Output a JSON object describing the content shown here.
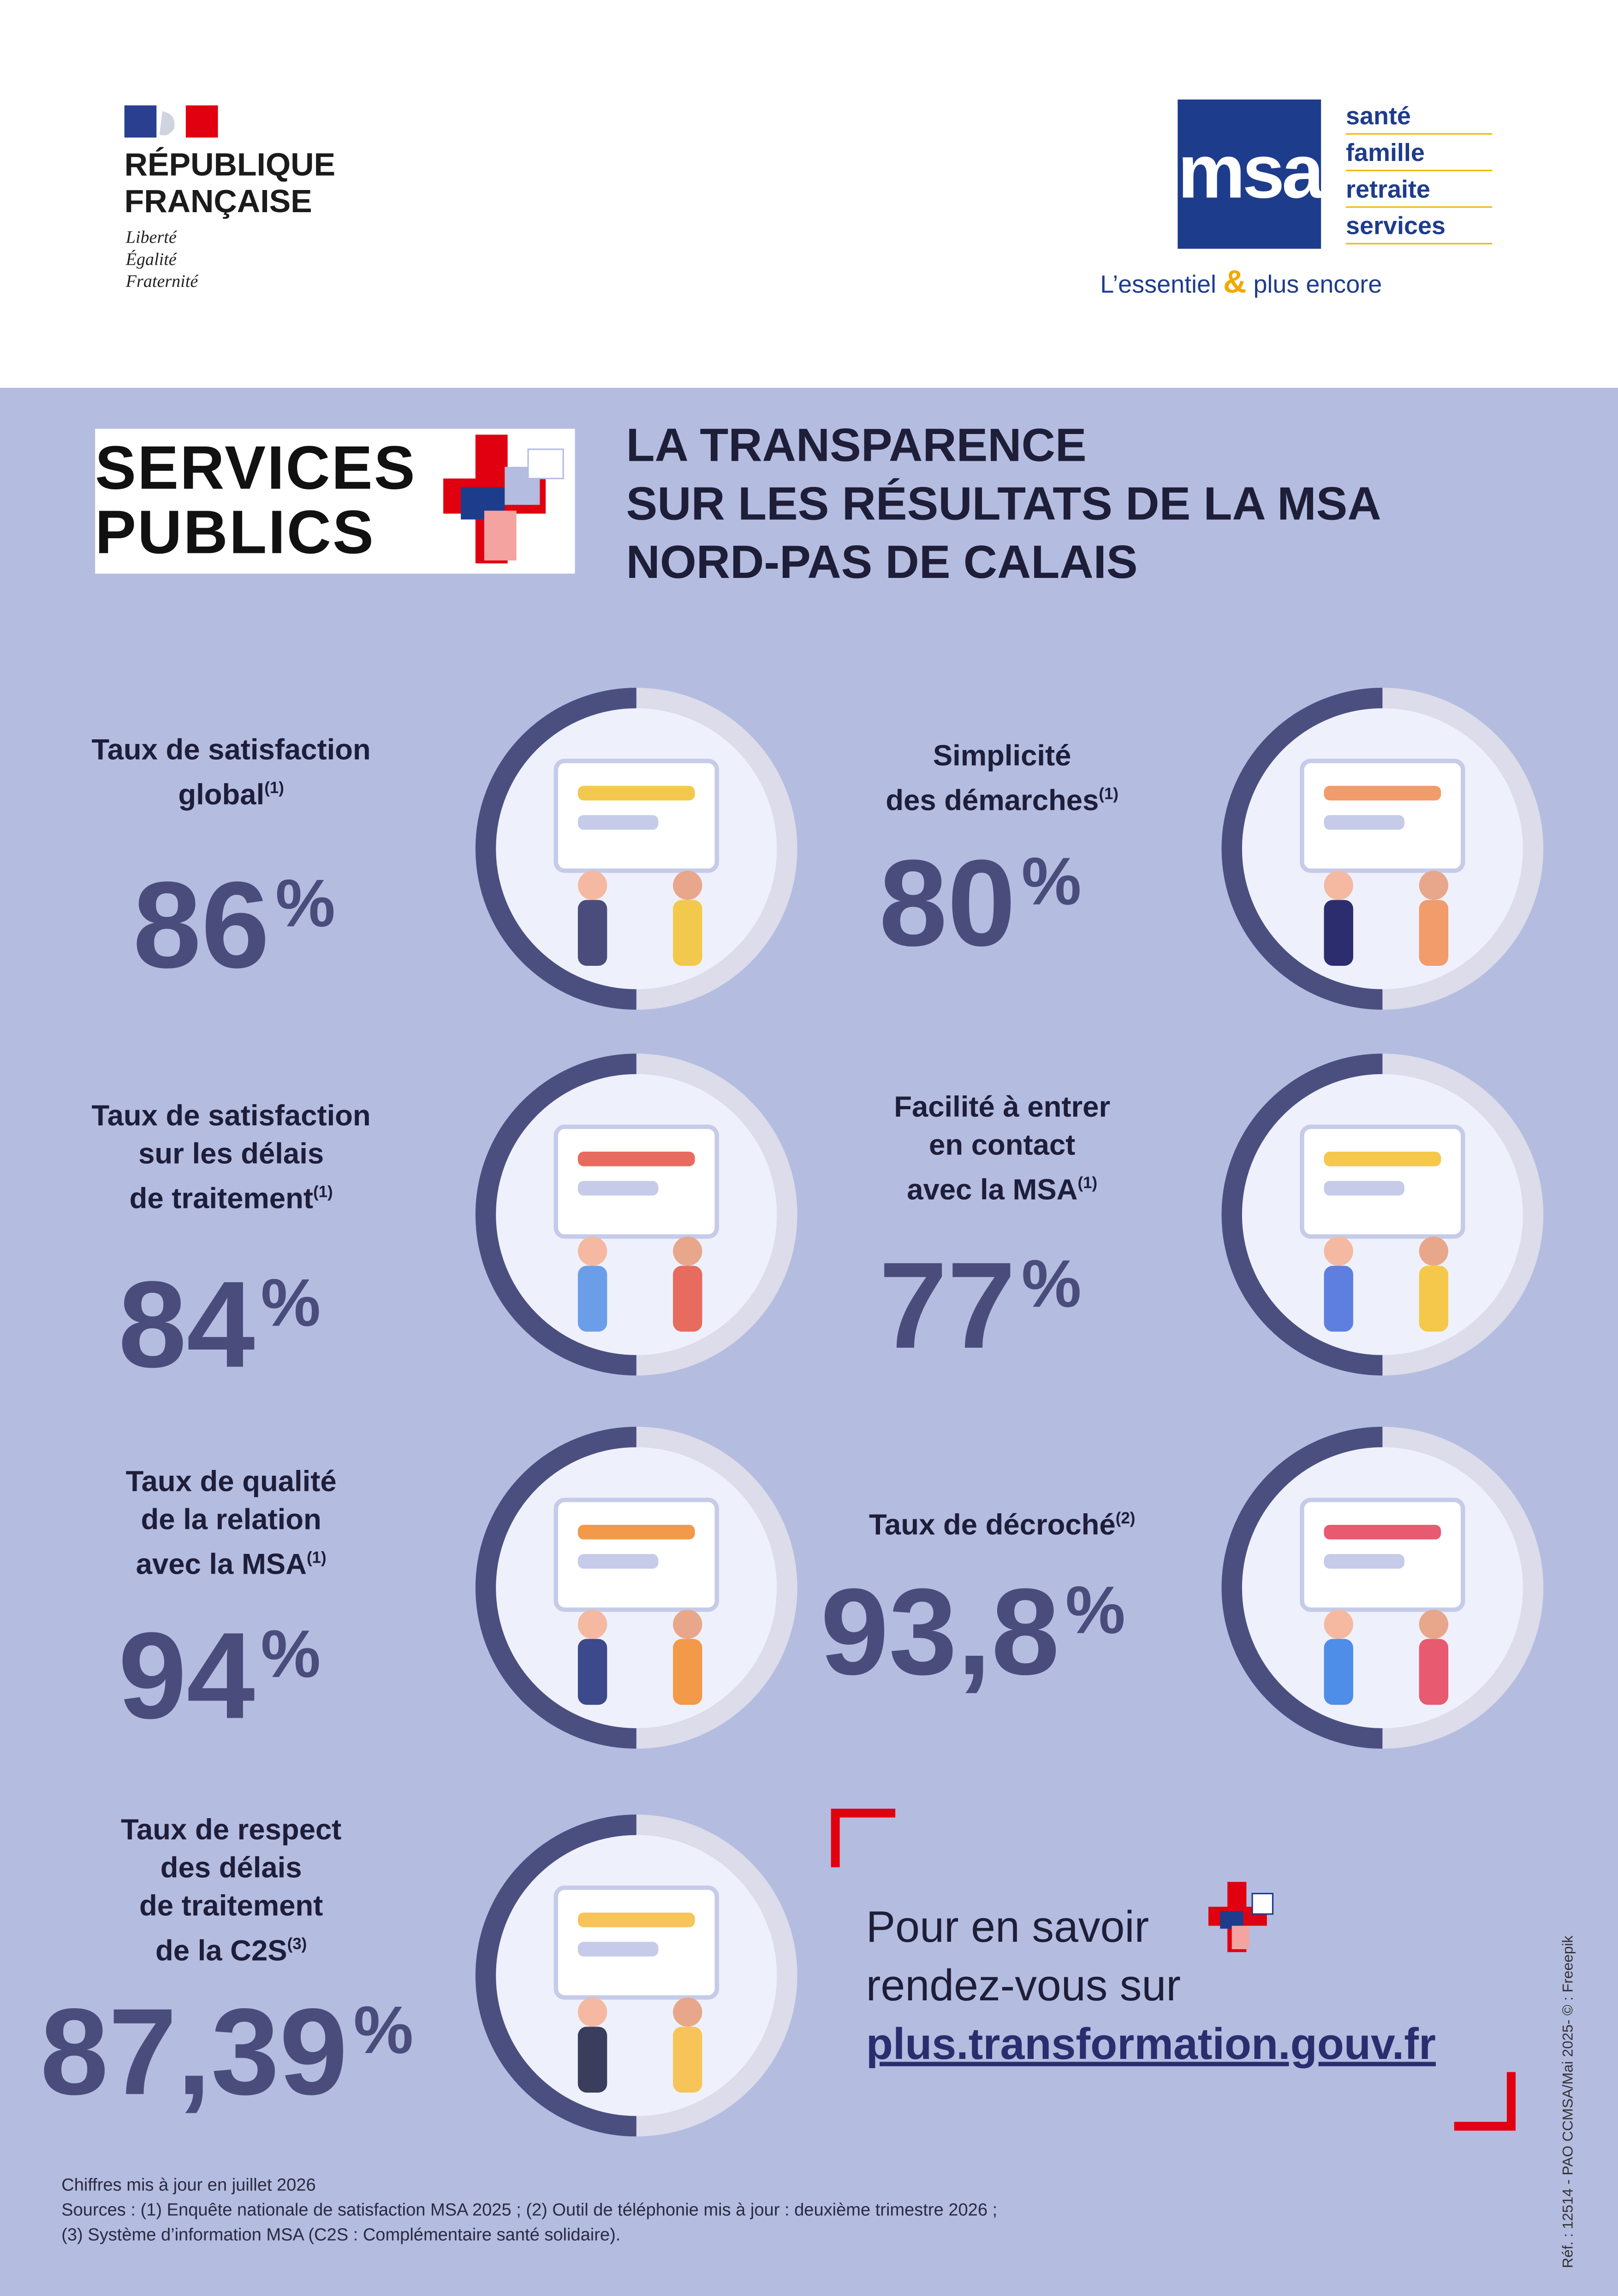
{
  "header": {
    "republique": [
      "RÉPUBLIQUE",
      "FRANÇAISE"
    ],
    "motto": [
      "Liberté",
      "Égalité",
      "Fraternité"
    ],
    "msa_logo": {
      "logo_text": "msa",
      "tagline": [
        "santé",
        "famille",
        "retraite",
        "services"
      ],
      "slogan_start": "L’essentiel",
      "slogan_amp": "&",
      "slogan_end": "plus encore"
    }
  },
  "badge": [
    "SERVICES",
    "PUBLICS"
  ],
  "title": [
    "LA TRANSPARENCE",
    "SUR LES RÉSULTATS DE LA MSA",
    "NORD-PAS DE CALAIS"
  ],
  "stats": [
    {
      "label": [
        "Taux de satisfaction",
        "global"
      ],
      "note": "(1)",
      "value": "86",
      "unit": "%"
    },
    {
      "label": [
        "Simplicité",
        "des démarches"
      ],
      "note": "(1)",
      "value": "80",
      "unit": "%"
    },
    {
      "label": [
        "Taux de satisfaction",
        "sur les délais",
        "de traitement"
      ],
      "note": "(1)",
      "value": "84",
      "unit": "%"
    },
    {
      "label": [
        "Facilité à entrer",
        "en contact",
        "avec la MSA"
      ],
      "note": "(1)",
      "value": "77",
      "unit": "%"
    },
    {
      "label": [
        "Taux de qualité",
        "de la relation",
        "avec la MSA"
      ],
      "note": "(1)",
      "value": "94",
      "unit": "%"
    },
    {
      "label": [
        "Taux de décroché"
      ],
      "note": "(2)",
      "value": "93,8",
      "unit": "%"
    },
    {
      "label": [
        "Taux de respect",
        "des délais",
        "de traitement",
        "de la C2S"
      ],
      "note": "(3)",
      "value": "87,39",
      "unit": "%"
    }
  ],
  "cta": {
    "lines": [
      "Pour en savoir",
      "rendez-vous sur"
    ],
    "link": "plus.transformation.gouv.fr"
  },
  "footer": {
    "lines": [
      "Chiffres mis à jour en juillet 2026",
      "Sources : (1) Enquête nationale de satisfaction MSA 2025 ;  (2) Outil de téléphonie mis à jour : deuxième trimestre 2026 ;",
      "(3) Système d’information MSA (C2S : Complémentaire santé solidaire)."
    ]
  },
  "reference": "Réf. : 12514 - PAO CCMSA/Mai 2025- © : Freeepik"
}
